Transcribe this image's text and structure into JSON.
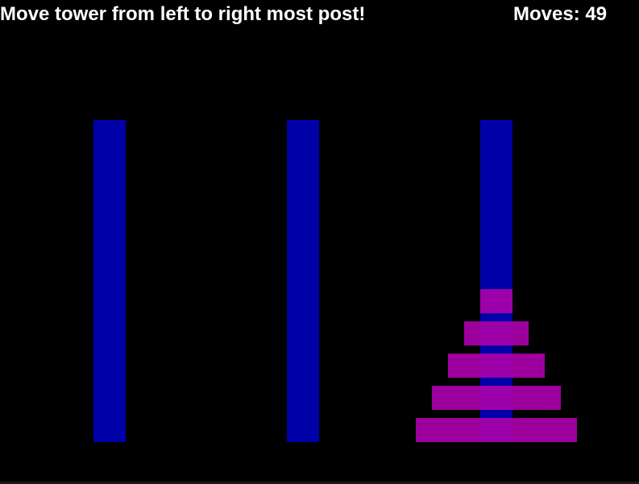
{
  "hud": {
    "instruction": "Move tower from left to right most post!",
    "moves_label": "Moves:",
    "moves_count": "49",
    "moves_text": "Moves: 49"
  },
  "game": {
    "posts": [
      {
        "name": "left",
        "disks": []
      },
      {
        "name": "middle",
        "disks": []
      },
      {
        "name": "right",
        "disks": [
          5,
          4,
          3,
          2,
          1
        ]
      }
    ]
  },
  "colors": {
    "background": "#000000",
    "post": "#0000a8",
    "disk": "#a800a8",
    "text": "#ffffff"
  }
}
